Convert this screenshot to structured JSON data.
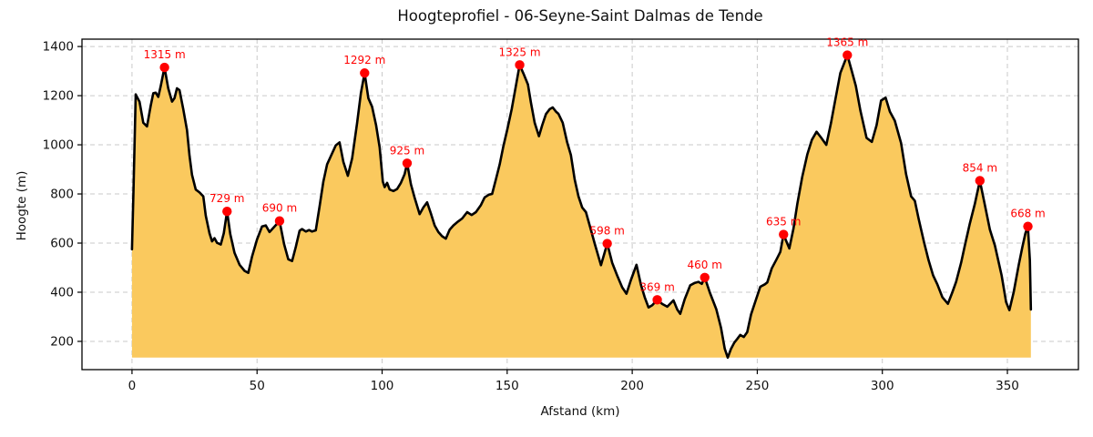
{
  "chart_data": {
    "type": "area",
    "title": "Hoogteprofiel - 06-Seyne-Saint Dalmas de Tende",
    "xlabel": "Afstand (km)",
    "ylabel": "Hoogte (m)",
    "xlim": [
      -20,
      378.4
    ],
    "ylim": [
      85,
      1430
    ],
    "xticks": [
      0,
      50,
      100,
      150,
      200,
      250,
      300,
      350
    ],
    "yticks": [
      200,
      400,
      600,
      800,
      1000,
      1200,
      1400
    ],
    "grid": true,
    "legend": "none",
    "line_color": "#000000",
    "fill_color": "#fac95e",
    "marker_color": "#ff0000",
    "peak_label_color": "#ff0000",
    "fill_base": 134,
    "profile": [
      [
        0,
        575
      ],
      [
        0.6,
        820
      ],
      [
        1.5,
        1205
      ],
      [
        3,
        1175
      ],
      [
        4.5,
        1090
      ],
      [
        6,
        1075
      ],
      [
        7.5,
        1160
      ],
      [
        8.5,
        1210
      ],
      [
        9.5,
        1212
      ],
      [
        10.5,
        1195
      ],
      [
        11.5,
        1240
      ],
      [
        13,
        1315
      ],
      [
        14.5,
        1230
      ],
      [
        16,
        1176
      ],
      [
        17,
        1190
      ],
      [
        18,
        1230
      ],
      [
        19,
        1222
      ],
      [
        20.5,
        1145
      ],
      [
        22,
        1060
      ],
      [
        23,
        955
      ],
      [
        24,
        878
      ],
      [
        25.5,
        818
      ],
      [
        27,
        806
      ],
      [
        28.5,
        790
      ],
      [
        29.5,
        712
      ],
      [
        31,
        640
      ],
      [
        32,
        607
      ],
      [
        33,
        620
      ],
      [
        34,
        601
      ],
      [
        35.5,
        594
      ],
      [
        36.7,
        640
      ],
      [
        38,
        729
      ],
      [
        39.3,
        637
      ],
      [
        41,
        560
      ],
      [
        43,
        512
      ],
      [
        45,
        487
      ],
      [
        46.5,
        479
      ],
      [
        48,
        545
      ],
      [
        50,
        615
      ],
      [
        52,
        668
      ],
      [
        53.5,
        672
      ],
      [
        55,
        645
      ],
      [
        56.5,
        662
      ],
      [
        59,
        690
      ],
      [
        60.8,
        596
      ],
      [
        62.5,
        534
      ],
      [
        64,
        527
      ],
      [
        65.5,
        585
      ],
      [
        67,
        650
      ],
      [
        68,
        657
      ],
      [
        69.5,
        647
      ],
      [
        70.8,
        653
      ],
      [
        72,
        647
      ],
      [
        73.5,
        652
      ],
      [
        75,
        750
      ],
      [
        76.5,
        850
      ],
      [
        78,
        920
      ],
      [
        80,
        965
      ],
      [
        81.5,
        998
      ],
      [
        83,
        1010
      ],
      [
        84.5,
        930
      ],
      [
        86.3,
        874
      ],
      [
        88,
        945
      ],
      [
        90,
        1090
      ],
      [
        91.5,
        1210
      ],
      [
        93,
        1292
      ],
      [
        94.5,
        1190
      ],
      [
        96,
        1155
      ],
      [
        97.6,
        1080
      ],
      [
        99,
        990
      ],
      [
        100.3,
        850
      ],
      [
        101,
        828
      ],
      [
        102,
        845
      ],
      [
        103,
        818
      ],
      [
        104.5,
        812
      ],
      [
        106,
        820
      ],
      [
        107.5,
        845
      ],
      [
        109,
        880
      ],
      [
        110,
        925
      ],
      [
        111.5,
        840
      ],
      [
        113,
        785
      ],
      [
        115,
        718
      ],
      [
        116.5,
        745
      ],
      [
        118,
        766
      ],
      [
        119.5,
        720
      ],
      [
        121,
        672
      ],
      [
        122.5,
        645
      ],
      [
        124,
        628
      ],
      [
        125.5,
        618
      ],
      [
        127,
        655
      ],
      [
        128.5,
        672
      ],
      [
        130,
        685
      ],
      [
        132,
        700
      ],
      [
        134,
        726
      ],
      [
        135.8,
        714
      ],
      [
        137.5,
        726
      ],
      [
        139.5,
        755
      ],
      [
        141,
        786
      ],
      [
        142.7,
        797
      ],
      [
        144,
        800
      ],
      [
        145.5,
        860
      ],
      [
        147,
        920
      ],
      [
        148.5,
        995
      ],
      [
        150,
        1060
      ],
      [
        151.8,
        1145
      ],
      [
        153.5,
        1240
      ],
      [
        155,
        1325
      ],
      [
        156.5,
        1290
      ],
      [
        158.3,
        1246
      ],
      [
        159.5,
        1172
      ],
      [
        161,
        1090
      ],
      [
        162.7,
        1035
      ],
      [
        164,
        1080
      ],
      [
        165.5,
        1125
      ],
      [
        167,
        1145
      ],
      [
        168.2,
        1152
      ],
      [
        169.5,
        1135
      ],
      [
        170.5,
        1126
      ],
      [
        172.2,
        1090
      ],
      [
        174,
        1010
      ],
      [
        175.5,
        958
      ],
      [
        177,
        858
      ],
      [
        178.5,
        790
      ],
      [
        180,
        745
      ],
      [
        181.5,
        726
      ],
      [
        183,
        672
      ],
      [
        185,
        598
      ],
      [
        187.5,
        510
      ],
      [
        190,
        598
      ],
      [
        192,
        520
      ],
      [
        194,
        468
      ],
      [
        196,
        420
      ],
      [
        197.7,
        394
      ],
      [
        199.5,
        450
      ],
      [
        201.7,
        512
      ],
      [
        203.5,
        430
      ],
      [
        205,
        380
      ],
      [
        206.5,
        338
      ],
      [
        208,
        347
      ],
      [
        210,
        369
      ],
      [
        212,
        352
      ],
      [
        214,
        341
      ],
      [
        216.5,
        367
      ],
      [
        218,
        330
      ],
      [
        219.2,
        312
      ],
      [
        221,
        372
      ],
      [
        223.2,
        428
      ],
      [
        225,
        438
      ],
      [
        226.5,
        442
      ],
      [
        227.8,
        434
      ],
      [
        229,
        460
      ],
      [
        231,
        400
      ],
      [
        233.6,
        331
      ],
      [
        235.5,
        255
      ],
      [
        237,
        170
      ],
      [
        238.2,
        134
      ],
      [
        239.5,
        170
      ],
      [
        240.8,
        195
      ],
      [
        242,
        210
      ],
      [
        243.2,
        226
      ],
      [
        244.6,
        218
      ],
      [
        246,
        238
      ],
      [
        247.5,
        310
      ],
      [
        249.4,
        368
      ],
      [
        251.2,
        422
      ],
      [
        253,
        432
      ],
      [
        254,
        440
      ],
      [
        255.8,
        497
      ],
      [
        257.7,
        534
      ],
      [
        259.2,
        564
      ],
      [
        260.5,
        635
      ],
      [
        262.8,
        578
      ],
      [
        264.5,
        660
      ],
      [
        266,
        760
      ],
      [
        268,
        870
      ],
      [
        270,
        960
      ],
      [
        271.8,
        1020
      ],
      [
        273.7,
        1053
      ],
      [
        275.5,
        1030
      ],
      [
        277.6,
        1000
      ],
      [
        279.5,
        1090
      ],
      [
        281.3,
        1190
      ],
      [
        283.2,
        1292
      ],
      [
        286,
        1365
      ],
      [
        287.8,
        1300
      ],
      [
        289.4,
        1240
      ],
      [
        291.2,
        1140
      ],
      [
        293.7,
        1028
      ],
      [
        295.8,
        1012
      ],
      [
        297.7,
        1080
      ],
      [
        299.5,
        1180
      ],
      [
        301.3,
        1192
      ],
      [
        303,
        1135
      ],
      [
        305,
        1098
      ],
      [
        307.5,
        1007
      ],
      [
        309.5,
        880
      ],
      [
        311.5,
        790
      ],
      [
        313,
        772
      ],
      [
        314.5,
        700
      ],
      [
        316.7,
        602
      ],
      [
        318.5,
        530
      ],
      [
        320.3,
        468
      ],
      [
        322,
        432
      ],
      [
        324,
        380
      ],
      [
        326.2,
        353
      ],
      [
        328,
        400
      ],
      [
        329.5,
        442
      ],
      [
        331.5,
        520
      ],
      [
        333,
        590
      ],
      [
        335,
        680
      ],
      [
        337,
        760
      ],
      [
        339,
        854
      ],
      [
        341,
        755
      ],
      [
        343,
        655
      ],
      [
        345,
        590
      ],
      [
        347.7,
        468
      ],
      [
        349.5,
        360
      ],
      [
        350.8,
        327
      ],
      [
        352.5,
        400
      ],
      [
        354.5,
        510
      ],
      [
        356,
        585
      ],
      [
        357.2,
        640
      ],
      [
        358.2,
        668
      ],
      [
        359,
        530
      ],
      [
        359.4,
        330
      ]
    ],
    "peaks": [
      {
        "km": 13,
        "m": 1315,
        "label": "1315 m"
      },
      {
        "km": 38,
        "m": 729,
        "label": "729 m"
      },
      {
        "km": 59,
        "m": 690,
        "label": "690 m"
      },
      {
        "km": 93,
        "m": 1292,
        "label": "1292 m"
      },
      {
        "km": 110,
        "m": 925,
        "label": "925 m"
      },
      {
        "km": 155,
        "m": 1325,
        "label": "1325 m"
      },
      {
        "km": 190,
        "m": 598,
        "label": "598 m"
      },
      {
        "km": 210,
        "m": 369,
        "label": "369 m"
      },
      {
        "km": 229,
        "m": 460,
        "label": "460 m"
      },
      {
        "km": 260.5,
        "m": 635,
        "label": "635 m"
      },
      {
        "km": 286,
        "m": 1365,
        "label": "1365 m"
      },
      {
        "km": 339,
        "m": 854,
        "label": "854 m"
      },
      {
        "km": 358.2,
        "m": 668,
        "label": "668 m"
      }
    ]
  }
}
